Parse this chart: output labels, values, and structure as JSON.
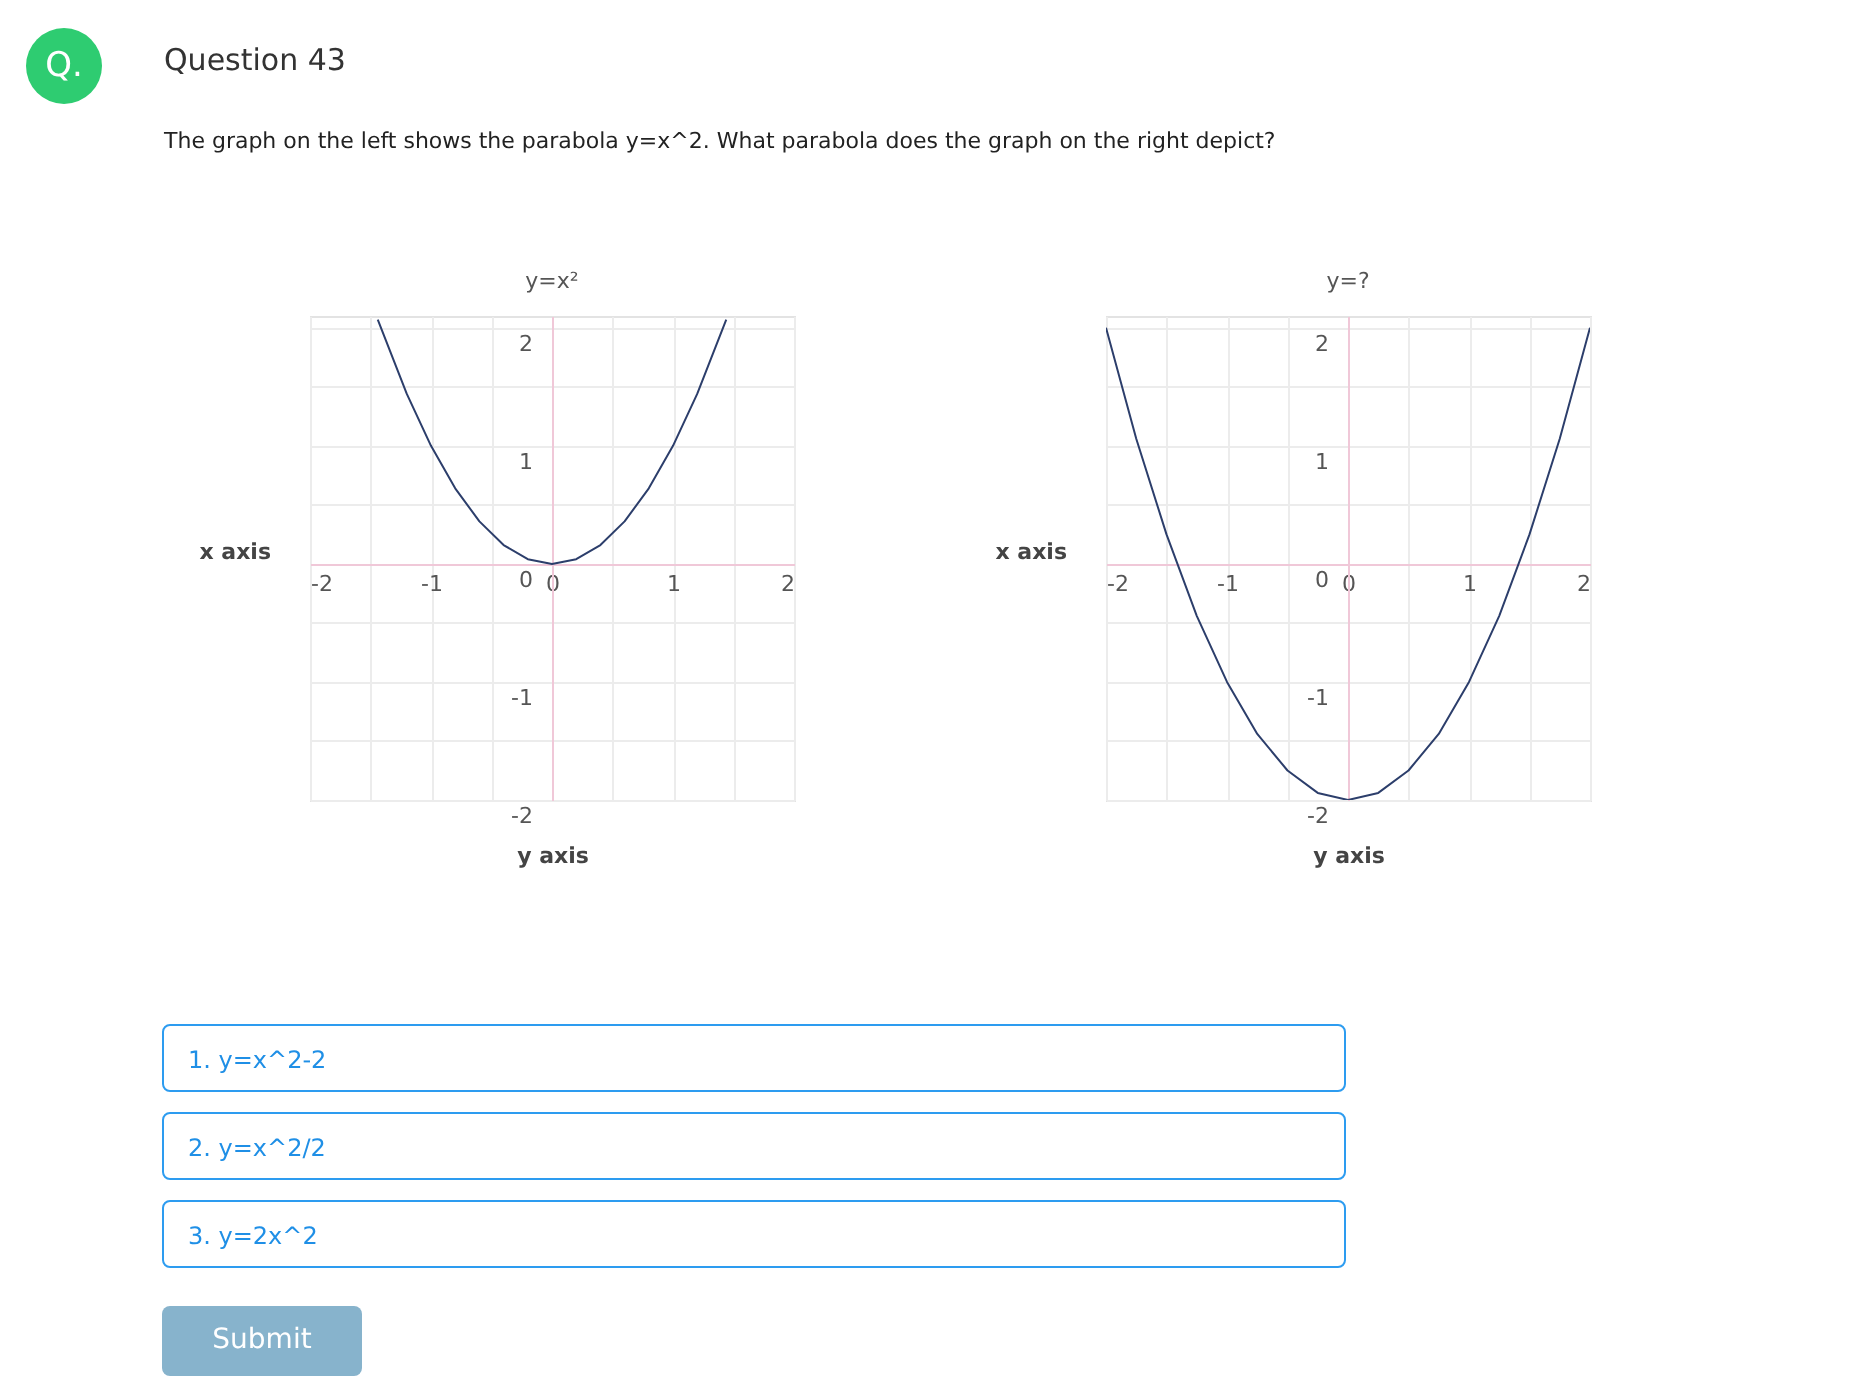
{
  "chart_data": [
    {
      "type": "line",
      "title": "y=x²",
      "xlabel": "y axis",
      "ylabel": "x axis",
      "color": "#2c3e6b",
      "grid": true,
      "x": [
        -1.44,
        -1.2,
        -1,
        -0.8,
        -0.6,
        -0.4,
        -0.2,
        0,
        0.2,
        0.4,
        0.6,
        0.8,
        1,
        1.2,
        1.44
      ],
      "values": [
        2.07,
        1.44,
        1,
        0.64,
        0.36,
        0.16,
        0.04,
        0,
        0.04,
        0.16,
        0.36,
        0.64,
        1,
        1.44,
        2.07
      ],
      "xlim": [
        -2,
        2
      ],
      "ylim": [
        -2,
        2.1
      ],
      "xticks": [
        -2,
        {
          "value": -1.5,
          "label": null
        },
        -1,
        {
          "value": -0.5,
          "label": null
        },
        0,
        {
          "value": 0.5,
          "label": null
        },
        1,
        {
          "value": 1.5,
          "label": null
        },
        2
      ],
      "yticks": [
        -2,
        {
          "value": -1.5,
          "label": null
        },
        -1,
        {
          "value": -0.5,
          "label": null
        },
        0,
        {
          "value": 0.5,
          "label": null
        },
        1,
        {
          "value": 1.5,
          "label": null
        },
        2
      ],
      "annotations": [
        "Q.",
        "Question 43",
        "The graph on the left shows the parabola y=x^2. What parabola does the graph on the right depict?",
        "1.  y=x^2-2",
        "2.  y=x^2/2",
        "3.  y=2x^2",
        "Submit"
      ]
    },
    {
      "type": "line",
      "title": "y=?",
      "xlabel": "y axis",
      "ylabel": "x axis",
      "color": "#2c3e6b",
      "grid": true,
      "x": [
        -2,
        -1.75,
        -1.5,
        -1.25,
        -1,
        -0.75,
        -0.5,
        -0.25,
        0,
        0.25,
        0.5,
        0.75,
        1,
        1.25,
        1.5,
        1.75,
        2
      ],
      "values": [
        2,
        1.06,
        0.25,
        -0.44,
        -1,
        -1.44,
        -1.75,
        -1.94,
        -2,
        -1.94,
        -1.75,
        -1.44,
        -1,
        -0.44,
        0.25,
        1.06,
        2
      ],
      "xlim": [
        -2,
        2
      ],
      "ylim": [
        -2,
        2.1
      ],
      "xticks": [
        -2,
        {
          "value": -1.5,
          "label": null
        },
        -1,
        {
          "value": -0.5,
          "label": null
        },
        0,
        {
          "value": 0.5,
          "label": null
        },
        1,
        {
          "value": 1.5,
          "label": null
        },
        2
      ],
      "yticks": [
        -2,
        {
          "value": -1.5,
          "label": null
        },
        -1,
        {
          "value": -0.5,
          "label": null
        },
        0,
        {
          "value": 0.5,
          "label": null
        },
        1,
        {
          "value": 1.5,
          "label": null
        },
        2
      ]
    }
  ]
}
